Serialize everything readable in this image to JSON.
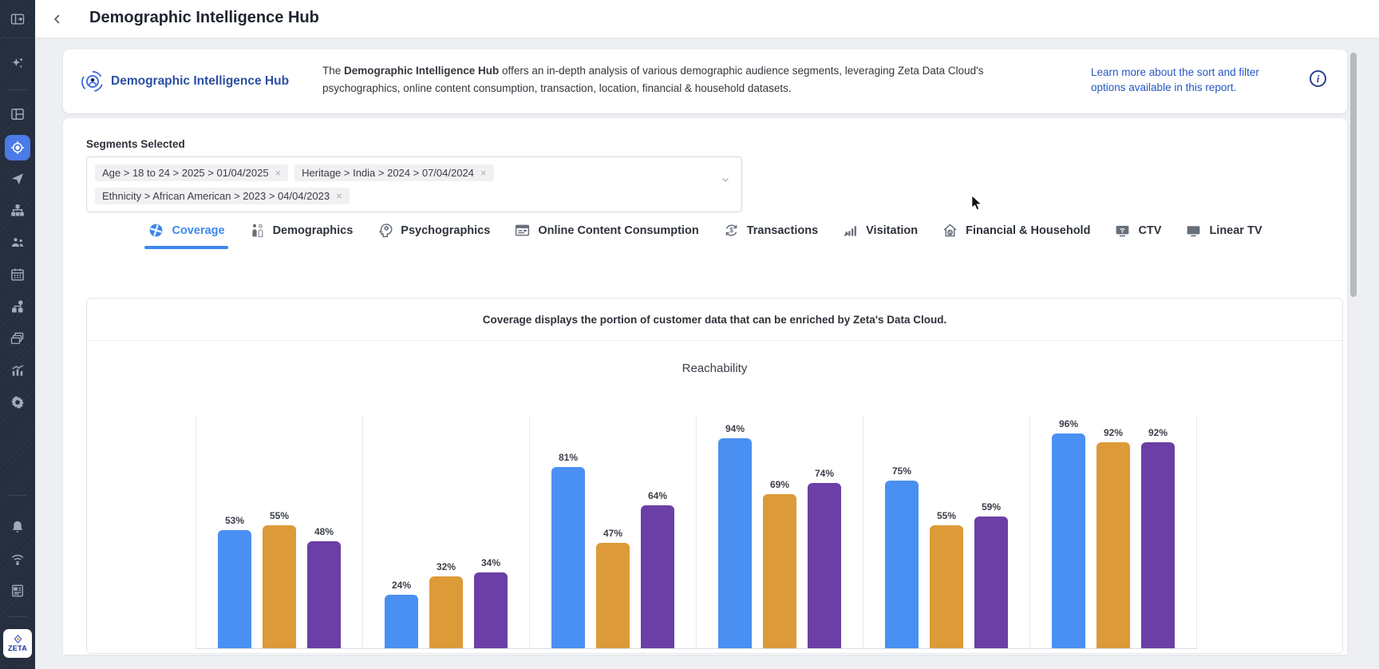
{
  "header": {
    "title": "Demographic Intelligence Hub"
  },
  "sidebar": {
    "logo_text": "ZETA",
    "active_icon": "target-icon",
    "items": [
      {
        "icon": "panel-toggle-icon"
      },
      {
        "icon": "sparkles-icon"
      },
      {
        "icon": "dashboard-icon"
      },
      {
        "icon": "target-icon",
        "active": true
      },
      {
        "icon": "send-icon"
      },
      {
        "icon": "org-chart-icon"
      },
      {
        "icon": "audience-icon"
      },
      {
        "icon": "calendar-icon"
      },
      {
        "icon": "split-flow-icon"
      },
      {
        "icon": "stack-icon"
      },
      {
        "icon": "analytics-icon"
      },
      {
        "icon": "gear-icon"
      },
      {
        "icon": "bell-icon"
      },
      {
        "icon": "signal-icon"
      },
      {
        "icon": "address-book-icon"
      }
    ]
  },
  "banner": {
    "title": "Demographic Intelligence Hub",
    "description_prefix": "The ",
    "description_bold": "Demographic Intelligence Hub",
    "description_rest": " offers an in-depth analysis of various demographic audience segments, leveraging Zeta Data Cloud's psychographics, online content consumption, transaction, location, financial & household datasets.",
    "learn_more_link": "Learn more about the sort and filter options available in this report."
  },
  "segments": {
    "label": "Segments Selected",
    "remove_glyph": "×",
    "chips": [
      {
        "label": "Age > 18 to 24 > 2025 > 01/04/2025"
      },
      {
        "label": "Heritage > India > 2024 > 07/04/2024"
      },
      {
        "label": "Ethnicity > African American > 2023 > 04/04/2023"
      }
    ]
  },
  "tabs": {
    "active": "Coverage",
    "items": [
      {
        "label": "Coverage",
        "icon": "coverage-icon"
      },
      {
        "label": "Demographics",
        "icon": "demographics-icon"
      },
      {
        "label": "Psychographics",
        "icon": "psychographics-icon"
      },
      {
        "label": "Online Content Consumption",
        "icon": "online-content-icon"
      },
      {
        "label": "Transactions",
        "icon": "transactions-icon"
      },
      {
        "label": "Visitation",
        "icon": "visitation-icon"
      },
      {
        "label": "Financial & Household",
        "icon": "financial-household-icon"
      },
      {
        "label": "CTV",
        "icon": "ctv-icon"
      },
      {
        "label": "Linear TV",
        "icon": "linear-tv-icon"
      }
    ]
  },
  "coverage_section": {
    "note": "Coverage displays the portion of customer data that can be enriched by Zeta's Data Cloud."
  },
  "chart_data": {
    "type": "bar",
    "title": "Reachability",
    "categories": [
      "",
      "",
      "",
      "",
      "",
      ""
    ],
    "series": [
      {
        "name": "blue",
        "color": "#4a90f2",
        "values": [
          53,
          24,
          81,
          94,
          75,
          96
        ]
      },
      {
        "name": "orange",
        "color": "#dd9a38",
        "values": [
          55,
          32,
          47,
          69,
          55,
          92
        ]
      },
      {
        "name": "purple",
        "color": "#6b3fa5",
        "values": [
          48,
          34,
          64,
          74,
          59,
          92
        ]
      }
    ],
    "value_suffix": "%",
    "value_labels": true,
    "ylim": [
      0,
      100
    ],
    "grid": "vertical-group-separators",
    "legend_visible": false
  },
  "colors": {
    "accent_blue": "#3d87ee",
    "banner_title_blue": "#2b4fa0",
    "link_blue": "#2456c4",
    "sidebar_bg": "#242e3e",
    "bar_blue": "#4a90f2",
    "bar_orange": "#dd9a38",
    "bar_purple": "#6b3fa5"
  }
}
